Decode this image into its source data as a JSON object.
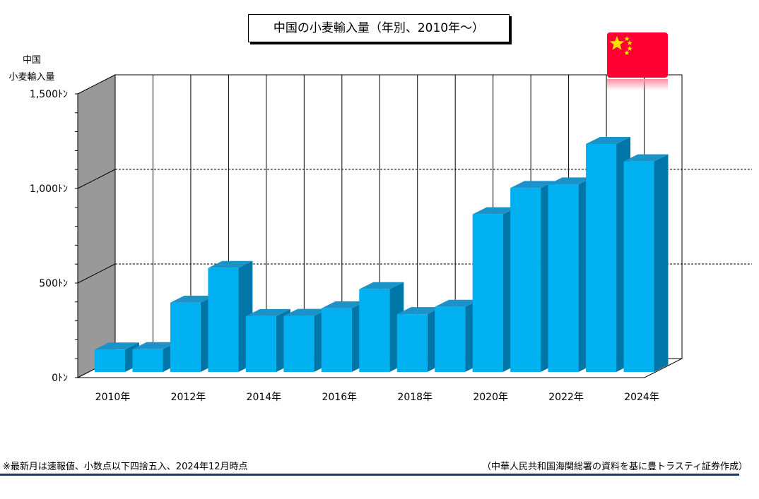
{
  "chart_data": {
    "type": "bar",
    "title": "中国の小麦輸入量（年別、2010年～）",
    "ylabel_lines": [
      "中国",
      "小麦輸入量"
    ],
    "categories": [
      "2010年",
      "2011年",
      "2012年",
      "2013年",
      "2014年",
      "2015年",
      "2016年",
      "2017年",
      "2018年",
      "2019年",
      "2020年",
      "2021年",
      "2022年",
      "2023年",
      "2024年"
    ],
    "tick_labels_shown": [
      "2010年",
      "2012年",
      "2014年",
      "2016年",
      "2018年",
      "2020年",
      "2022年",
      "2024年"
    ],
    "series": [
      {
        "values": [
          123,
          125,
          371,
          554,
          300,
          301,
          341,
          442,
          310,
          349,
          838,
          977,
          996,
          1210,
          1118
        ]
      }
    ],
    "ylim": [
      0,
      1500
    ],
    "yticks": [
      0,
      500,
      1000,
      1500
    ],
    "ytick_labels": [
      "0ﾄﾝ",
      "500ﾄﾝ",
      "1,000ﾄﾝ",
      "1,500ﾄﾝ"
    ],
    "gridlines": [
      500,
      1000
    ],
    "bar_color": "#00b0f0",
    "bar_side_color": "#0075a8",
    "bar_top_color": "#1c93c8",
    "wall_color": "#999999"
  },
  "footer": {
    "note": "※最新月は速報値、小数点以下四捨五入、2024年12月時点",
    "source": "（中華人民共和国海関総署の資料を基に豊トラスティ証券作成）"
  },
  "flag_icon": "china-flag-icon"
}
